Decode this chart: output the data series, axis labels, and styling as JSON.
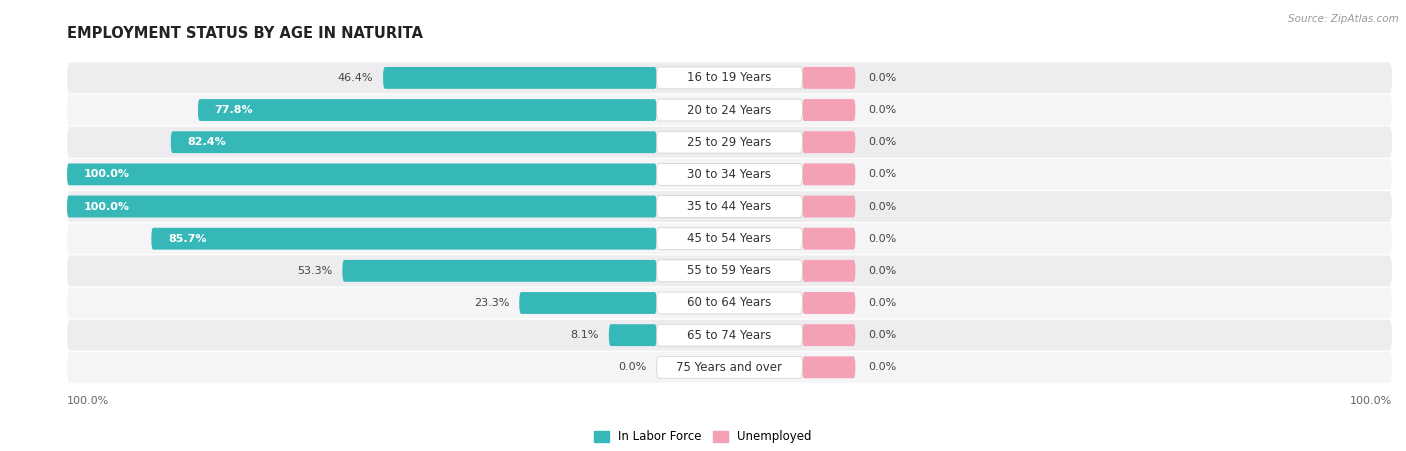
{
  "title": "EMPLOYMENT STATUS BY AGE IN NATURITA",
  "source": "Source: ZipAtlas.com",
  "categories": [
    "16 to 19 Years",
    "20 to 24 Years",
    "25 to 29 Years",
    "30 to 34 Years",
    "35 to 44 Years",
    "45 to 54 Years",
    "55 to 59 Years",
    "60 to 64 Years",
    "65 to 74 Years",
    "75 Years and over"
  ],
  "labor_force": [
    46.4,
    77.8,
    82.4,
    100.0,
    100.0,
    85.7,
    53.3,
    23.3,
    8.1,
    0.0
  ],
  "unemployed": [
    0.0,
    0.0,
    0.0,
    0.0,
    0.0,
    0.0,
    0.0,
    0.0,
    0.0,
    0.0
  ],
  "labor_force_color": "#36b8b8",
  "unemployed_color": "#f4a0b5",
  "row_bg_even": "#ededef",
  "row_bg_odd": "#f5f5f7",
  "label_bg": "#ffffff",
  "title_fontsize": 10.5,
  "label_fontsize": 8.5,
  "value_fontsize": 8.0,
  "left_axis_label": "100.0%",
  "right_axis_label": "100.0%",
  "legend_labor": "In Labor Force",
  "legend_unemployed": "Unemployed",
  "unemp_bar_width": 8.0
}
